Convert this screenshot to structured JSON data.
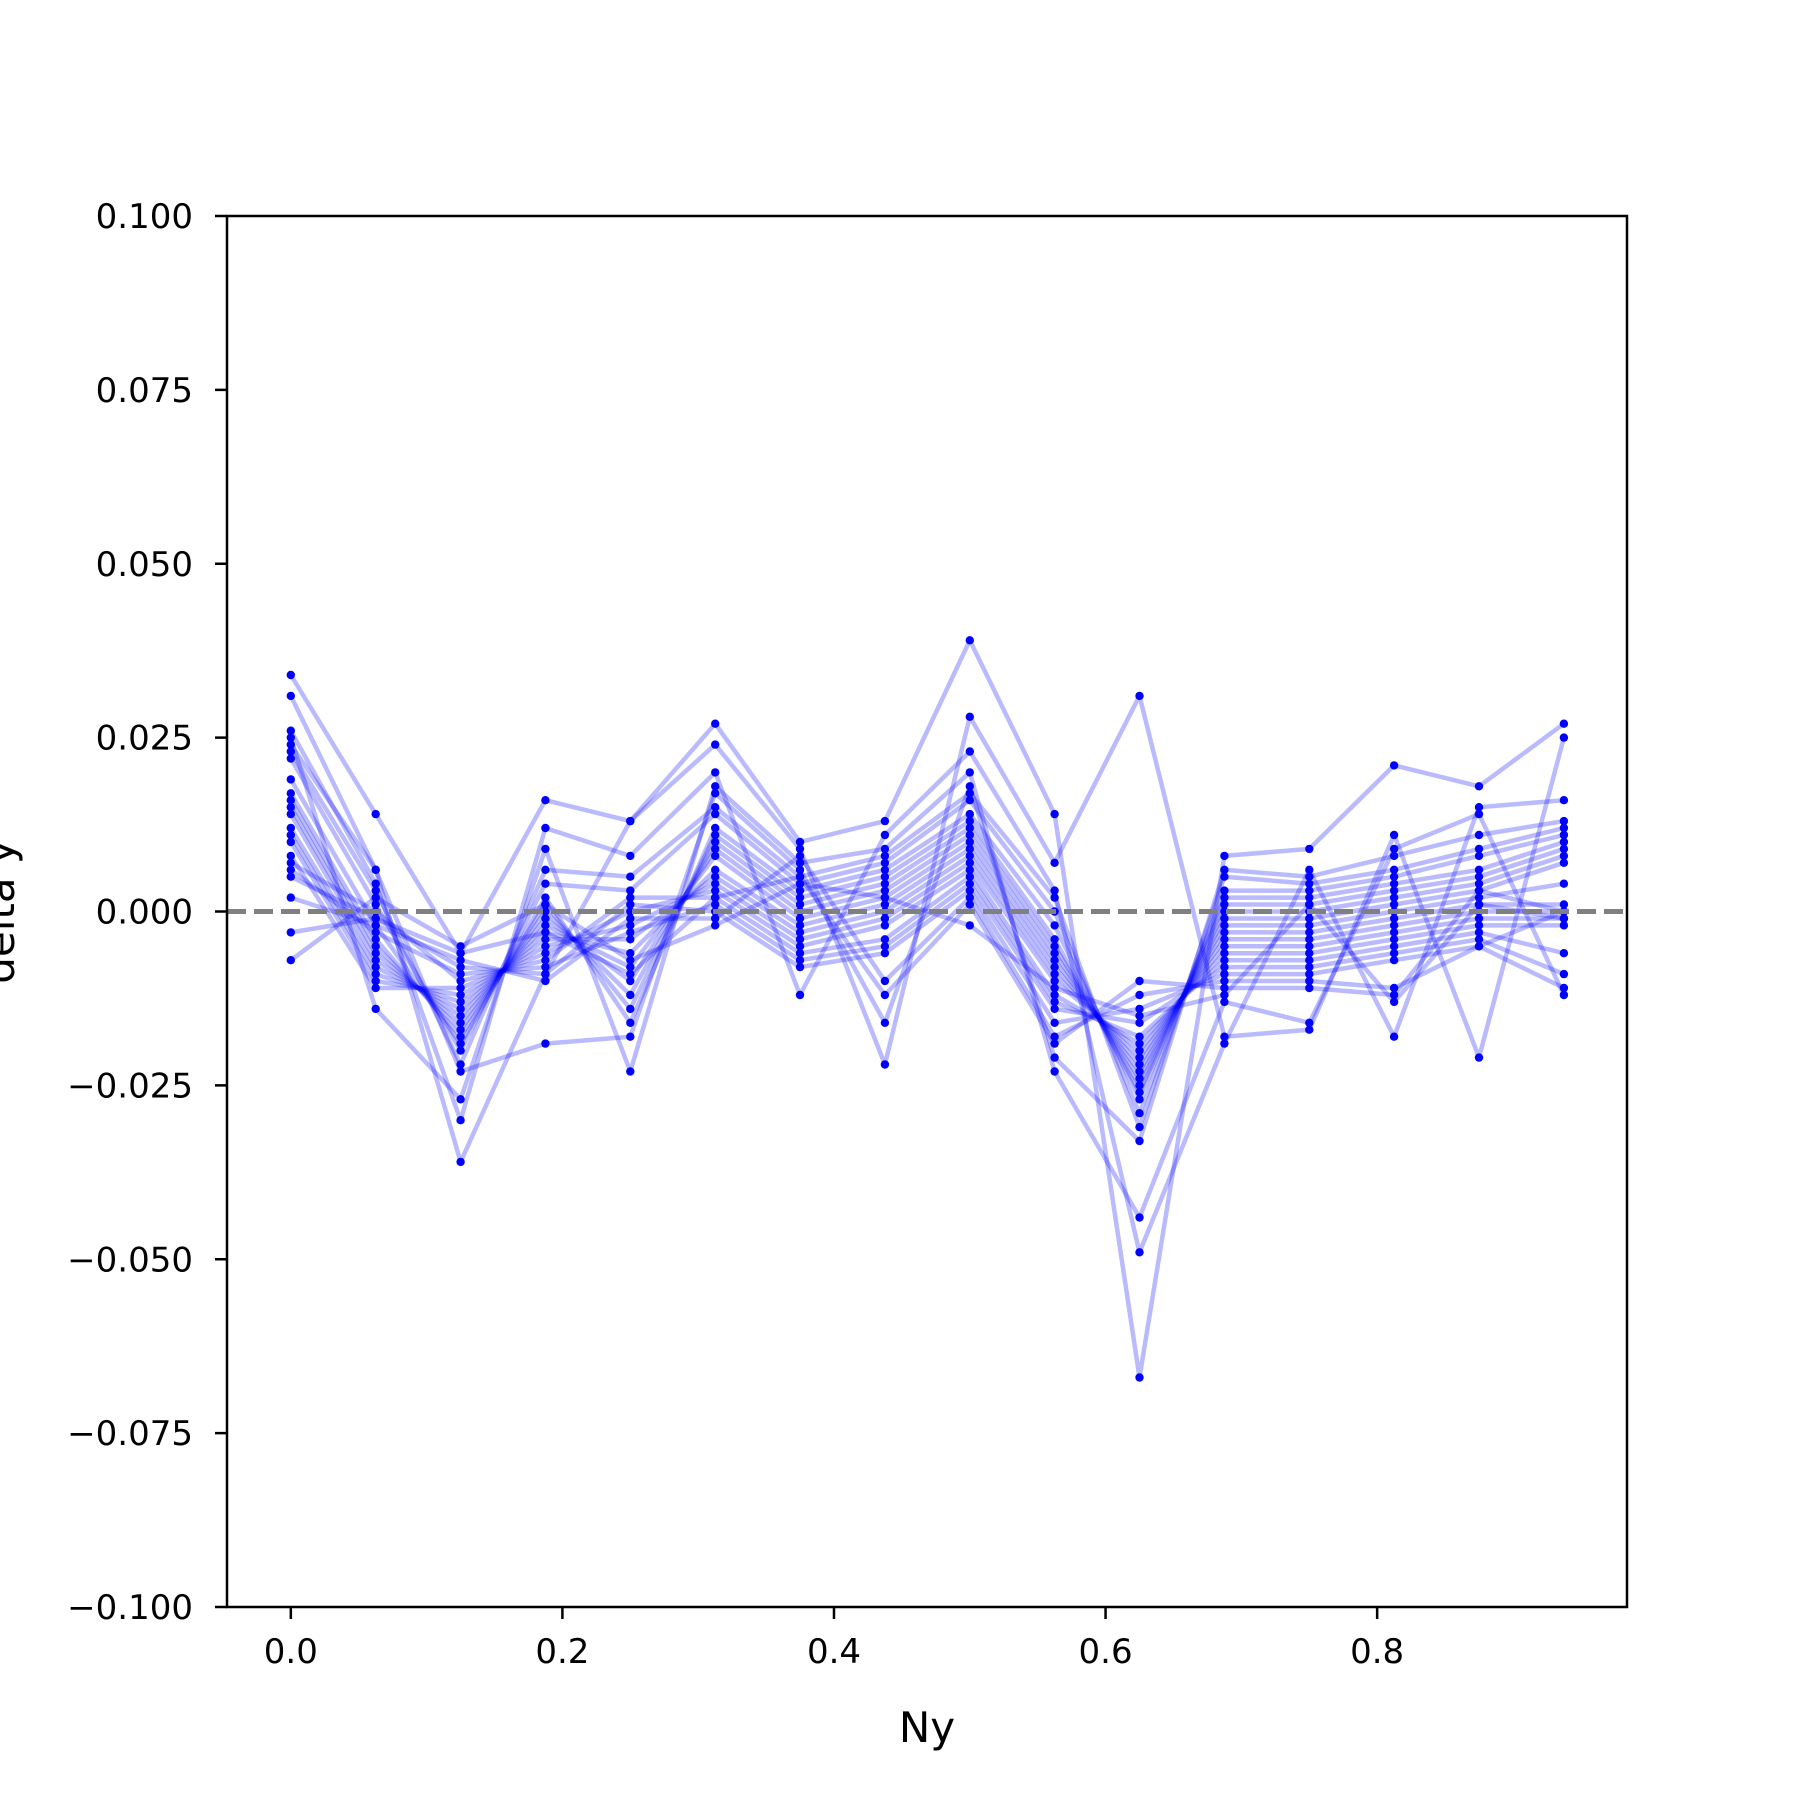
{
  "chart_data": {
    "type": "line",
    "title": "",
    "xlabel": "Ny",
    "ylabel": "delta y",
    "xlim": [
      -0.047,
      0.984
    ],
    "ylim": [
      -0.1,
      0.1
    ],
    "x_ticks": [
      0.0,
      0.2,
      0.4,
      0.6,
      0.8
    ],
    "x_tick_labels": [
      "0.0",
      "0.2",
      "0.4",
      "0.6",
      "0.8"
    ],
    "y_ticks": [
      0.1,
      0.075,
      0.05,
      0.025,
      0.0,
      -0.025,
      -0.05,
      -0.075,
      -0.1
    ],
    "y_tick_labels": [
      "0.100",
      "0.075",
      "0.050",
      "0.025",
      "0.000",
      "−0.025",
      "−0.050",
      "−0.075",
      "−0.100"
    ],
    "grid": false,
    "reference_line": {
      "y": 0.0,
      "style": "dashed",
      "color": "#808080"
    },
    "colors": {
      "series": "#0000ff",
      "series_alpha": 0.27,
      "reference": "#808080"
    },
    "x": [
      0.0,
      0.0625,
      0.125,
      0.1875,
      0.25,
      0.3125,
      0.375,
      0.4375,
      0.5,
      0.5625,
      0.625,
      0.6875,
      0.75,
      0.8125,
      0.875,
      0.9375
    ],
    "series": [
      {
        "values": [
          0.034,
          0.014,
          -0.006,
          0.016,
          0.013,
          0.027,
          0.01,
          0.013,
          0.039,
          0.014,
          -0.067,
          0.008,
          0.009,
          0.021,
          0.018,
          0.027
        ]
      },
      {
        "values": [
          0.031,
          0.006,
          -0.036,
          -0.009,
          0.013,
          0.024,
          0.009,
          -0.022,
          0.028,
          0.007,
          0.031,
          -0.018,
          -0.017,
          0.011,
          -0.021,
          0.025
        ]
      },
      {
        "values": [
          0.026,
          0.004,
          -0.03,
          0.012,
          0.008,
          0.02,
          -0.012,
          0.011,
          0.023,
          0.003,
          -0.049,
          -0.019,
          0.006,
          -0.018,
          0.015,
          0.016
        ]
      },
      {
        "values": [
          0.025,
          -0.014,
          -0.027,
          0.009,
          -0.023,
          0.018,
          0.007,
          0.009,
          0.02,
          -0.023,
          -0.044,
          -0.013,
          -0.016,
          0.009,
          0.014,
          -0.012
        ]
      },
      {
        "values": [
          0.024,
          0.006,
          -0.023,
          -0.019,
          -0.018,
          0.017,
          0.006,
          -0.016,
          0.018,
          -0.021,
          -0.033,
          0.006,
          0.005,
          0.008,
          0.011,
          0.013
        ]
      },
      {
        "values": [
          0.023,
          0.003,
          -0.022,
          0.006,
          0.005,
          0.015,
          0.005,
          0.008,
          0.017,
          0.002,
          -0.031,
          0.005,
          0.004,
          0.006,
          0.009,
          0.012
        ]
      },
      {
        "values": [
          0.022,
          0.001,
          -0.02,
          0.004,
          0.003,
          0.014,
          0.004,
          0.007,
          0.016,
          0.0,
          -0.029,
          0.003,
          0.003,
          0.005,
          0.008,
          0.011
        ]
      },
      {
        "values": [
          0.019,
          -0.002,
          -0.019,
          0.002,
          -0.016,
          0.012,
          0.003,
          0.006,
          0.014,
          -0.002,
          -0.027,
          0.002,
          0.002,
          0.004,
          0.006,
          0.01
        ]
      },
      {
        "values": [
          0.017,
          -0.004,
          -0.018,
          0.001,
          -0.014,
          0.011,
          0.002,
          0.005,
          0.013,
          -0.004,
          -0.026,
          0.001,
          0.001,
          0.003,
          0.005,
          0.009
        ]
      },
      {
        "values": [
          0.016,
          -0.005,
          -0.017,
          0.0,
          -0.012,
          0.01,
          0.001,
          0.004,
          0.012,
          -0.005,
          -0.025,
          0.0,
          0.0,
          0.002,
          0.004,
          0.008
        ]
      },
      {
        "values": [
          0.015,
          -0.006,
          -0.016,
          -0.001,
          -0.01,
          0.009,
          0.0,
          0.003,
          0.011,
          -0.006,
          -0.024,
          -0.001,
          -0.001,
          0.001,
          0.003,
          0.007
        ]
      },
      {
        "values": [
          0.014,
          -0.007,
          -0.015,
          -0.002,
          -0.008,
          0.008,
          -0.001,
          0.002,
          0.01,
          -0.007,
          -0.023,
          -0.002,
          -0.002,
          0.0,
          0.002,
          0.004
        ]
      },
      {
        "values": [
          0.012,
          -0.008,
          -0.014,
          -0.003,
          -0.006,
          0.006,
          -0.002,
          0.001,
          0.009,
          -0.008,
          -0.022,
          -0.003,
          -0.003,
          -0.001,
          0.001,
          0.001
        ]
      },
      {
        "values": [
          0.011,
          -0.009,
          -0.013,
          -0.004,
          -0.004,
          0.005,
          -0.003,
          0.0,
          0.008,
          -0.009,
          -0.021,
          -0.004,
          -0.004,
          -0.002,
          0.0,
          0.0
        ]
      },
      {
        "values": [
          0.01,
          -0.01,
          -0.012,
          -0.005,
          -0.002,
          0.004,
          -0.004,
          -0.001,
          0.007,
          -0.01,
          -0.02,
          -0.005,
          -0.005,
          -0.003,
          -0.001,
          -0.001
        ]
      },
      {
        "values": [
          0.008,
          -0.011,
          -0.011,
          -0.006,
          0.0,
          0.003,
          -0.005,
          -0.002,
          0.006,
          -0.012,
          -0.019,
          -0.006,
          -0.006,
          -0.004,
          -0.002,
          -0.002
        ]
      },
      {
        "values": [
          0.007,
          0.0,
          -0.01,
          -0.007,
          0.002,
          0.002,
          -0.006,
          -0.004,
          0.005,
          -0.013,
          -0.018,
          -0.007,
          -0.007,
          -0.005,
          -0.003,
          -0.006
        ]
      },
      {
        "values": [
          0.006,
          -0.003,
          -0.009,
          -0.008,
          -0.003,
          0.001,
          -0.007,
          -0.005,
          0.004,
          -0.014,
          -0.016,
          -0.008,
          -0.008,
          -0.006,
          -0.004,
          -0.009
        ]
      },
      {
        "values": [
          0.005,
          -0.001,
          -0.008,
          -0.009,
          0.001,
          0.0,
          -0.008,
          -0.006,
          0.003,
          -0.016,
          -0.014,
          -0.009,
          -0.009,
          -0.007,
          -0.005,
          -0.011
        ]
      },
      {
        "values": [
          0.002,
          -0.002,
          -0.007,
          -0.01,
          -0.001,
          -0.001,
          0.008,
          -0.01,
          0.002,
          -0.018,
          -0.012,
          -0.01,
          -0.01,
          -0.011,
          -0.005,
          0.0
        ]
      },
      {
        "values": [
          -0.003,
          -0.001,
          -0.006,
          -0.003,
          -0.009,
          0.002,
          0.005,
          -0.012,
          0.001,
          -0.019,
          -0.01,
          -0.011,
          -0.011,
          -0.012,
          0.003,
          0.0
        ]
      },
      {
        "values": [
          -0.007,
          0.002,
          -0.005,
          0.001,
          -0.007,
          -0.002,
          0.004,
          0.002,
          -0.002,
          -0.011,
          -0.015,
          -0.012,
          0.001,
          -0.013,
          0.001,
          -0.001
        ]
      }
    ]
  }
}
